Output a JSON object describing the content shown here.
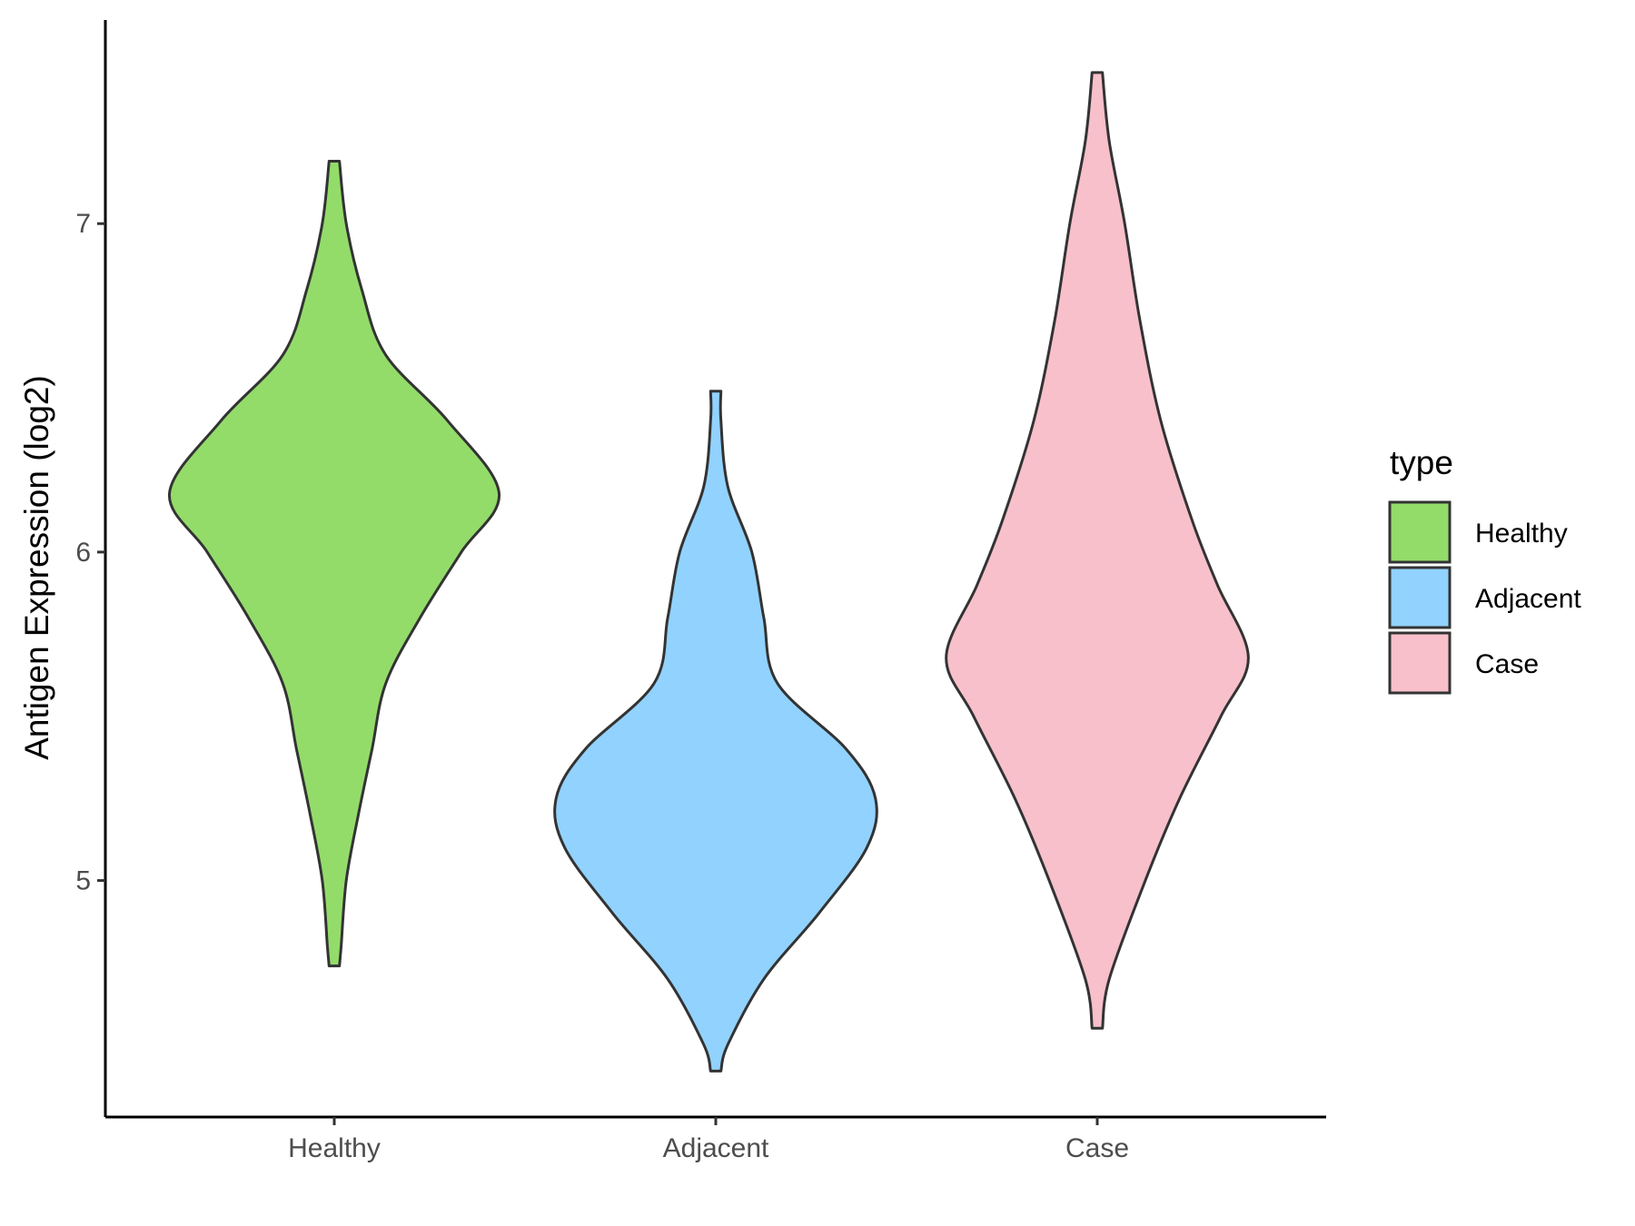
{
  "chart_data": {
    "type": "violin",
    "title": "",
    "xlabel": "",
    "ylabel": "Antigen Expression (log2)",
    "categories": [
      "Healthy",
      "Adjacent",
      "Case"
    ],
    "ylim": [
      4.28,
      7.62
    ],
    "yticks": [
      5,
      6,
      7
    ],
    "grid": false,
    "legend": {
      "title": "type",
      "position": "right",
      "entries": [
        "Healthy",
        "Adjacent",
        "Case"
      ]
    },
    "colors": {
      "Healthy": "#93dc6a",
      "Adjacent": "#92d2fe",
      "Case": "#f7c0cb",
      "outline": "#333333"
    },
    "series": [
      {
        "category": "Healthy",
        "min": 4.74,
        "max": 7.19,
        "density_profile": [
          [
            4.74,
            0.03
          ],
          [
            4.8,
            0.04
          ],
          [
            5.0,
            0.07
          ],
          [
            5.2,
            0.14
          ],
          [
            5.4,
            0.22
          ],
          [
            5.6,
            0.3
          ],
          [
            5.8,
            0.5
          ],
          [
            6.0,
            0.74
          ],
          [
            6.18,
            0.96
          ],
          [
            6.4,
            0.66
          ],
          [
            6.6,
            0.3
          ],
          [
            6.8,
            0.16
          ],
          [
            7.0,
            0.07
          ],
          [
            7.19,
            0.03
          ]
        ]
      },
      {
        "category": "Adjacent",
        "min": 4.42,
        "max": 6.49,
        "density_profile": [
          [
            4.42,
            0.03
          ],
          [
            4.5,
            0.07
          ],
          [
            4.7,
            0.28
          ],
          [
            4.9,
            0.6
          ],
          [
            5.1,
            0.88
          ],
          [
            5.25,
            0.93
          ],
          [
            5.4,
            0.76
          ],
          [
            5.6,
            0.36
          ],
          [
            5.8,
            0.28
          ],
          [
            6.0,
            0.21
          ],
          [
            6.2,
            0.07
          ],
          [
            6.4,
            0.03
          ],
          [
            6.49,
            0.03
          ]
        ]
      },
      {
        "category": "Case",
        "min": 4.55,
        "max": 7.46,
        "density_profile": [
          [
            4.55,
            0.03
          ],
          [
            4.7,
            0.07
          ],
          [
            5.0,
            0.28
          ],
          [
            5.25,
            0.48
          ],
          [
            5.5,
            0.72
          ],
          [
            5.68,
            0.88
          ],
          [
            5.9,
            0.7
          ],
          [
            6.1,
            0.55
          ],
          [
            6.4,
            0.37
          ],
          [
            6.7,
            0.25
          ],
          [
            7.0,
            0.16
          ],
          [
            7.25,
            0.07
          ],
          [
            7.46,
            0.03
          ]
        ]
      }
    ]
  }
}
